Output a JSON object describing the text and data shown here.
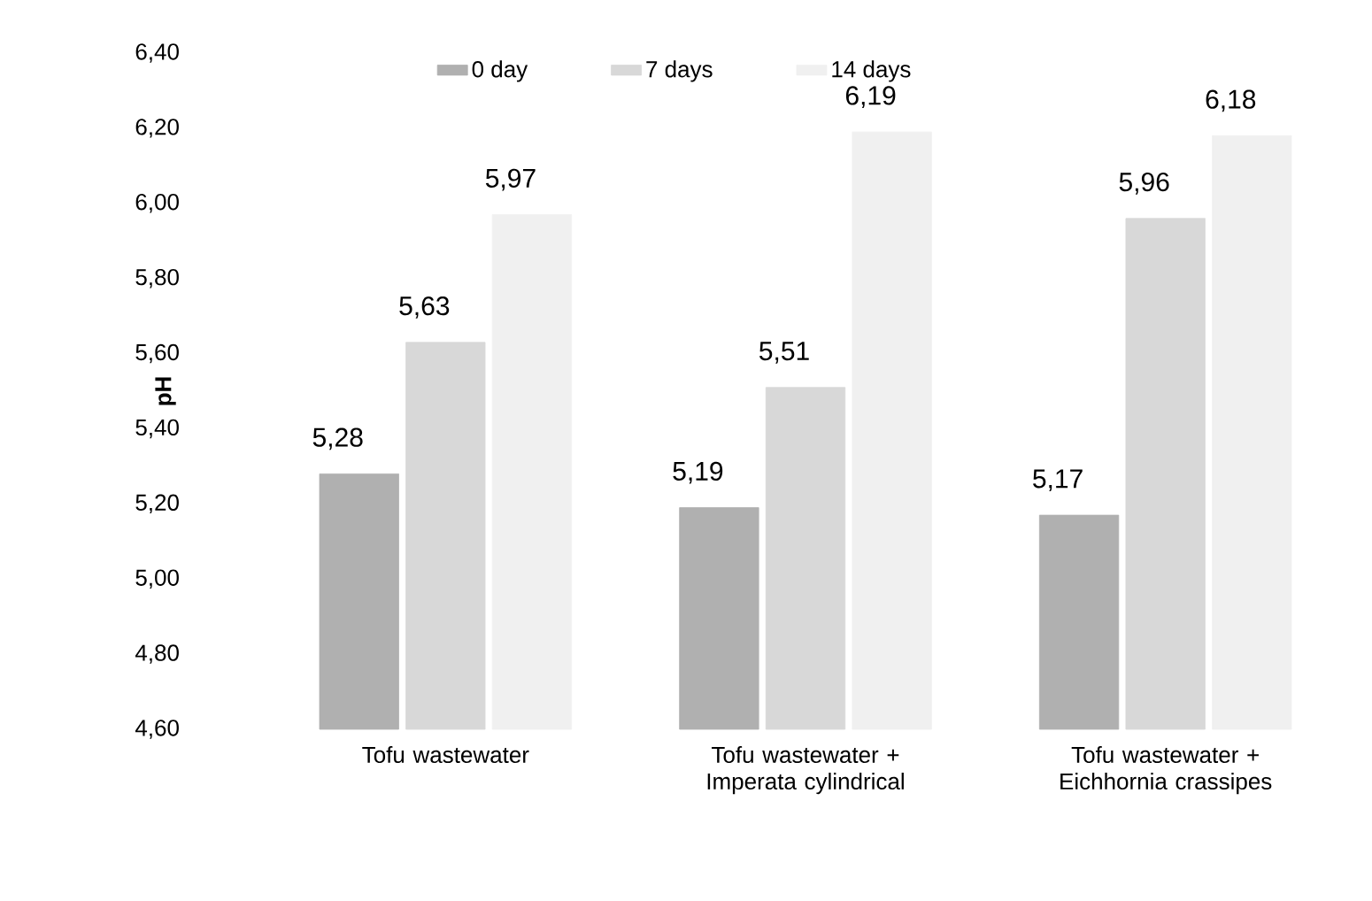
{
  "chart_data": {
    "type": "bar",
    "ylabel": "pH",
    "categories": [
      "Tofu wastewater",
      "Tofu wastewater + Imperata cylindrical",
      "Tofu wastewater + Eichhornia crassipes"
    ],
    "series": [
      {
        "name": "0 day",
        "color": "#b0b0b0",
        "values": [
          5.28,
          5.19,
          5.17
        ],
        "value_labels": [
          "5,28",
          "5,19",
          "5,17"
        ]
      },
      {
        "name": "7 days",
        "color": "#d8d8d8",
        "values": [
          5.63,
          5.51,
          5.96
        ],
        "value_labels": [
          "5,63",
          "5,51",
          "5,96"
        ]
      },
      {
        "name": "14 days",
        "color": "#f0f0f0",
        "values": [
          5.97,
          6.19,
          6.18
        ],
        "value_labels": [
          "5,97",
          "6,19",
          "6,18"
        ]
      }
    ],
    "ylim": [
      4.6,
      6.4
    ],
    "yticks": [
      {
        "value": 4.6,
        "label": "4,60"
      },
      {
        "value": 4.8,
        "label": "4,80"
      },
      {
        "value": 5.0,
        "label": "5,00"
      },
      {
        "value": 5.2,
        "label": "5,20"
      },
      {
        "value": 5.4,
        "label": "5,40"
      },
      {
        "value": 5.6,
        "label": "5,60"
      },
      {
        "value": 5.8,
        "label": "5,80"
      },
      {
        "value": 6.0,
        "label": "6,00"
      },
      {
        "value": 6.2,
        "label": "6,20"
      },
      {
        "value": 6.4,
        "label": "6,40"
      }
    ],
    "grid": false,
    "legend": "top"
  }
}
